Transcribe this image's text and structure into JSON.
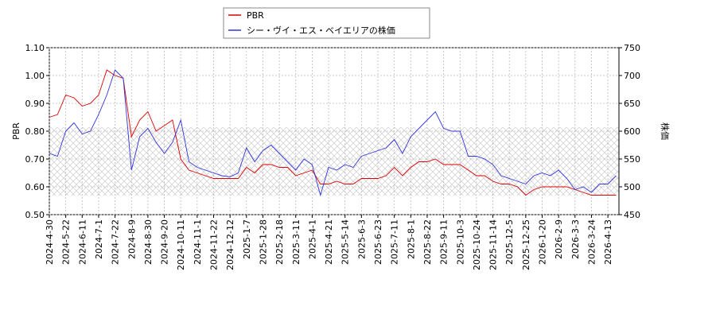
{
  "chart_data": {
    "type": "line",
    "categories": [
      "2024-4-30",
      null,
      "2024-5-22",
      null,
      "2024-6-11",
      null,
      "2024-7-1",
      null,
      "2024-7-22",
      null,
      "2024-8-9",
      null,
      "2024-8-30",
      null,
      "2024-9-20",
      null,
      "2024-10-11",
      null,
      "2024-11-1",
      null,
      "2024-11-22",
      null,
      "2024-12-12",
      null,
      "2025-1-7",
      null,
      "2025-1-28",
      null,
      "2025-2-18",
      null,
      "2025-3-11",
      null,
      "2025-4-1",
      null,
      "2025-4-21",
      null,
      "2025-5-14",
      null,
      "2025-6-3",
      null,
      "2025-6-23",
      null,
      "2025-7-11",
      null,
      "2025-8-1",
      null,
      "2025-8-22",
      null,
      "2025-9-11",
      null,
      "2025-10-3",
      null,
      "2025-10-24",
      null,
      "2025-11-14",
      null,
      "2025-12-5",
      null,
      "2025-12-25",
      null,
      "2026-1-20",
      null,
      "2026-2-9",
      null,
      "2026-3-3",
      null,
      "2026-3-24",
      null,
      "2026-4-13",
      null
    ],
    "series": [
      {
        "name": "PBR",
        "color": "#dd0000",
        "values": [
          0.85,
          0.86,
          0.93,
          0.92,
          0.89,
          0.9,
          0.93,
          1.02,
          1.0,
          0.99,
          0.78,
          0.84,
          0.87,
          0.8,
          0.82,
          0.84,
          0.7,
          0.66,
          0.65,
          0.64,
          0.63,
          0.63,
          0.63,
          0.63,
          0.67,
          0.65,
          0.68,
          0.68,
          0.67,
          0.67,
          0.64,
          0.65,
          0.66,
          0.61,
          0.61,
          0.62,
          0.61,
          0.61,
          0.63,
          0.63,
          0.63,
          0.64,
          0.67,
          0.64,
          0.67,
          0.69,
          0.69,
          0.7,
          0.68,
          0.68,
          0.68,
          0.66,
          0.64,
          0.64,
          0.62,
          0.61,
          0.61,
          0.6,
          0.57,
          0.59,
          0.6,
          0.6,
          0.6,
          0.6,
          0.59,
          0.58,
          0.57,
          0.57,
          0.57,
          0.57
        ]
      },
      {
        "name": "シー・ヴイ・エス・ベイエリアの株価",
        "color": "#3333dd",
        "axis": "y2",
        "values": [
          560,
          555,
          600,
          615,
          595,
          600,
          630,
          665,
          710,
          695,
          530,
          590,
          605,
          580,
          560,
          580,
          620,
          545,
          535,
          530,
          525,
          520,
          518,
          525,
          570,
          545,
          565,
          575,
          560,
          545,
          530,
          550,
          540,
          485,
          535,
          530,
          540,
          535,
          555,
          560,
          565,
          570,
          585,
          560,
          590,
          605,
          620,
          635,
          605,
          600,
          600,
          555,
          555,
          550,
          540,
          520,
          515,
          510,
          505,
          520,
          525,
          520,
          530,
          515,
          495,
          500,
          490,
          505,
          505,
          520
        ]
      }
    ],
    "ylabel": "PBR",
    "y2label": "株価",
    "ylim": [
      0.5,
      1.1
    ],
    "yticks": [
      {
        "value": 0.5,
        "label": "0.50"
      },
      {
        "value": 0.6,
        "label": "0.60"
      },
      {
        "value": 0.7,
        "label": "0.70"
      },
      {
        "value": 0.8,
        "label": "0.80"
      },
      {
        "value": 0.9,
        "label": "0.90"
      },
      {
        "value": 1.0,
        "label": "1.00"
      },
      {
        "value": 1.1,
        "label": "1.10"
      }
    ],
    "y2lim": [
      450,
      750
    ],
    "y2ticks": [
      450,
      500,
      550,
      600,
      650,
      700,
      750
    ],
    "grid": true
  }
}
